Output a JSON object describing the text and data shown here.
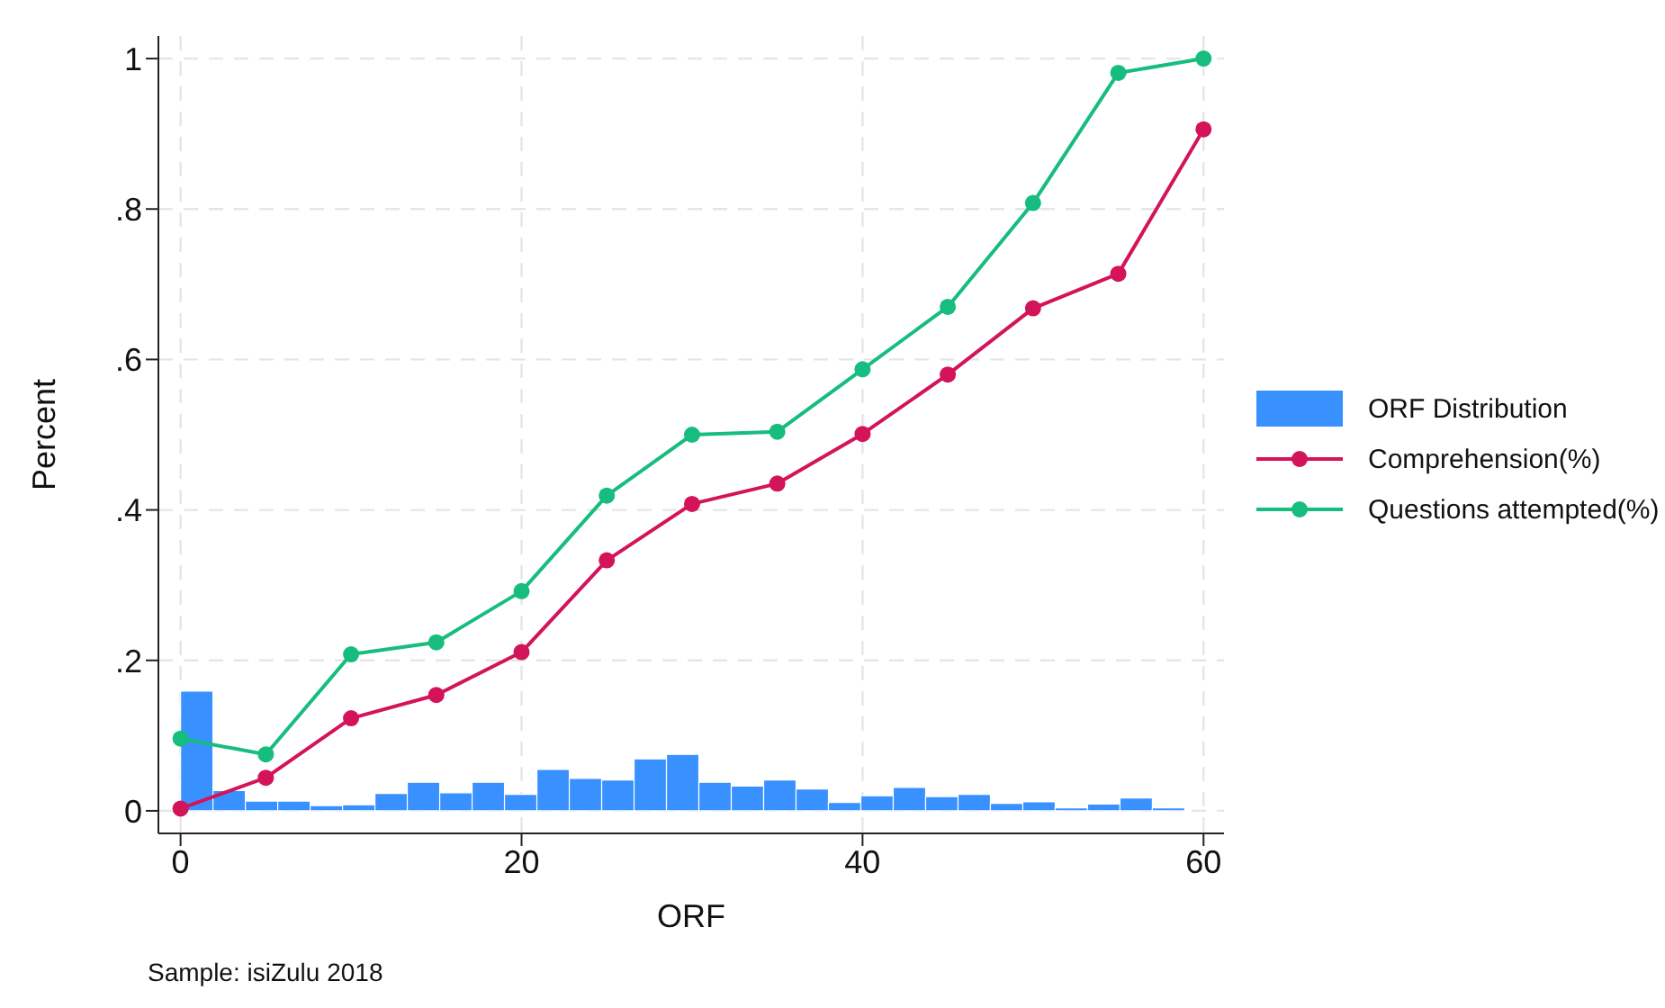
{
  "chart_data": {
    "type": "line",
    "xlabel": "ORF",
    "ylabel": "Percent",
    "annotations": [
      "Sample: isiZulu 2018"
    ],
    "xlim": [
      -1.3,
      61.2
    ],
    "ylim": [
      -0.03,
      1.03
    ],
    "xticks": [
      0,
      20,
      40,
      60
    ],
    "yticks": [
      0,
      {
        "value": 0.2,
        "label": ".2"
      },
      {
        "value": 0.4,
        "label": ".4"
      },
      {
        "value": 0.6,
        "label": ".6"
      },
      {
        "value": 0.8,
        "label": ".8"
      },
      1
    ],
    "grid": true,
    "legend": "right",
    "marker": "circle",
    "line_style": "solid",
    "series": [
      {
        "type": "histogram",
        "name": "ORF Distribution",
        "color": "#3891ff",
        "bins": [
          0,
          1.9,
          3.8,
          5.7,
          7.6,
          9.5,
          11.4,
          13.3,
          15.2,
          17.1,
          19,
          20.9,
          22.8,
          24.7,
          26.6,
          28.5,
          30.4,
          32.3,
          34.2,
          36.1,
          38,
          39.9,
          41.8,
          43.7,
          45.6,
          47.5,
          49.4,
          51.3,
          53.2,
          55.1,
          57,
          58.9
        ],
        "values": [
          0.159,
          0.027,
          0.013,
          0.013,
          0.007,
          0.008,
          0.023,
          0.038,
          0.024,
          0.038,
          0.022,
          0.055,
          0.043,
          0.041,
          0.069,
          0.075,
          0.038,
          0.033,
          0.041,
          0.029,
          0.011,
          0.02,
          0.031,
          0.019,
          0.022,
          0.01,
          0.012,
          0.004,
          0.009,
          0.017,
          0.004
        ]
      },
      {
        "name": "Comprehension(%)",
        "color": "#d3145a",
        "x": [
          0,
          5,
          10,
          15,
          20,
          25,
          30,
          35,
          40,
          45,
          50,
          55,
          60
        ],
        "values": [
          0.003,
          0.044,
          0.123,
          0.154,
          0.211,
          0.333,
          0.408,
          0.435,
          0.501,
          0.58,
          0.668,
          0.714,
          0.906
        ]
      },
      {
        "name": "Questions attempted(%)",
        "color": "#16bd7e",
        "x": [
          0,
          5,
          10,
          15,
          20,
          25,
          30,
          35,
          40,
          45,
          50,
          55,
          60
        ],
        "values": [
          0.096,
          0.075,
          0.208,
          0.224,
          0.292,
          0.419,
          0.5,
          0.504,
          0.587,
          0.67,
          0.808,
          0.981,
          1
        ]
      }
    ]
  }
}
